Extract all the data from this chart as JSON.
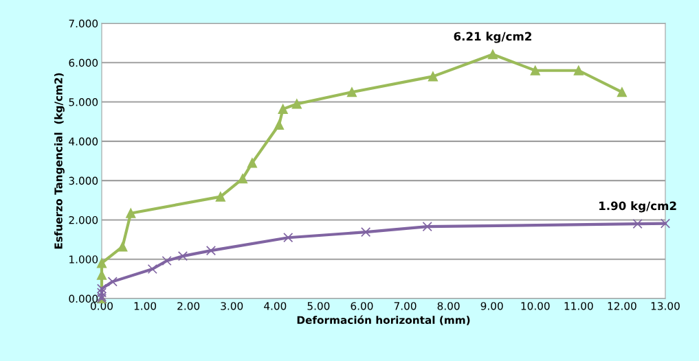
{
  "chart_data": {
    "type": "line",
    "xlabel": "Deformación horizontal (mm)",
    "ylabel": "Esfuerzo Tangencial  (kg/cm2)",
    "xlim": [
      0,
      13
    ],
    "ylim": [
      0,
      7
    ],
    "xticks": [
      {
        "value": 0,
        "label": "0.00"
      },
      {
        "value": 1,
        "label": "1.00"
      },
      {
        "value": 2,
        "label": "2.00"
      },
      {
        "value": 3,
        "label": "3.00"
      },
      {
        "value": 4,
        "label": "4.00"
      },
      {
        "value": 5,
        "label": "5.00"
      },
      {
        "value": 6,
        "label": "6.00"
      },
      {
        "value": 7,
        "label": "7.00"
      },
      {
        "value": 8,
        "label": "8.00"
      },
      {
        "value": 9,
        "label": "9.00"
      },
      {
        "value": 10,
        "label": "10.00"
      },
      {
        "value": 11,
        "label": "11.00"
      },
      {
        "value": 12,
        "label": "12.00"
      },
      {
        "value": 13,
        "label": "13.00"
      }
    ],
    "yticks": [
      {
        "value": 0,
        "label": "0.000"
      },
      {
        "value": 1,
        "label": "1.000"
      },
      {
        "value": 2,
        "label": "2.000"
      },
      {
        "value": 3,
        "label": "3.000"
      },
      {
        "value": 4,
        "label": "4.000"
      },
      {
        "value": 5,
        "label": "5.000"
      },
      {
        "value": 6,
        "label": "6.000"
      },
      {
        "value": 7,
        "label": "7.000"
      }
    ],
    "grid": "y",
    "legend": false,
    "series": [
      {
        "color": "#9bbb59",
        "marker": "triangle",
        "x": [
          0,
          0,
          0,
          0.48,
          0.67,
          2.74,
          3.25,
          3.47,
          4.09,
          4.18,
          4.5,
          5.77,
          7.64,
          9.02,
          10.0,
          11.0,
          12.0
        ],
        "values": [
          0,
          0.6,
          0.9,
          1.32,
          2.17,
          2.59,
          3.05,
          3.45,
          4.42,
          4.82,
          4.95,
          5.25,
          5.65,
          6.21,
          5.8,
          5.8,
          5.25
        ]
      },
      {
        "color": "#8064a2",
        "marker": "cross",
        "x": [
          0,
          0,
          0,
          0,
          0.25,
          1.17,
          1.5,
          1.87,
          2.52,
          4.3,
          6.09,
          7.51,
          12.36,
          13.0
        ],
        "values": [
          0,
          0.05,
          0.15,
          0.25,
          0.43,
          0.75,
          0.96,
          1.08,
          1.22,
          1.55,
          1.69,
          1.83,
          1.9,
          1.91
        ]
      }
    ],
    "annotations": [
      {
        "text": "6.21 kg/cm2",
        "x": 9.02,
        "y": 6.21
      },
      {
        "text": "1.90 kg/cm2",
        "x": 12.36,
        "y": 1.9
      }
    ]
  }
}
